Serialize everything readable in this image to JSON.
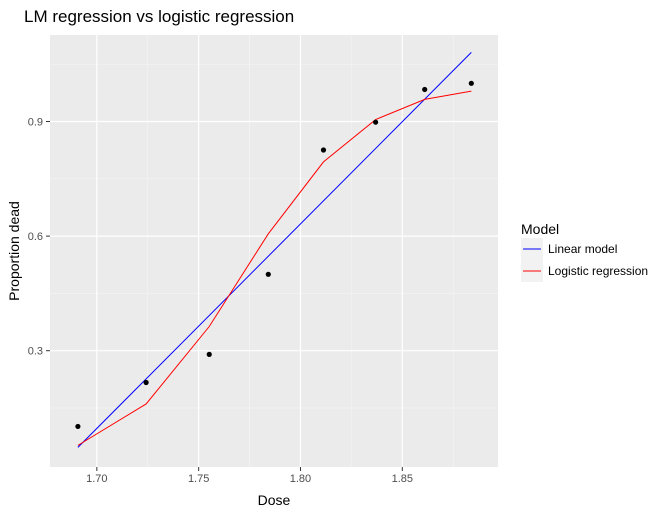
{
  "chart_data": {
    "type": "line",
    "title": "LM regression vs logistic regression",
    "xlabel": "Dose",
    "ylabel": "Proportion dead",
    "xlim": [
      1.677,
      1.897
    ],
    "ylim": [
      -0.0045,
      1.1265
    ],
    "x_ticks": [
      1.7,
      1.75,
      1.8,
      1.85
    ],
    "x_tick_labels": [
      "1.70",
      "1.75",
      "1.80",
      "1.85"
    ],
    "y_ticks": [
      0.3,
      0.6,
      0.9
    ],
    "y_tick_labels": [
      "0.3",
      "0.6",
      "0.9"
    ],
    "grid": true,
    "panel_background": "#ebebeb",
    "legend": {
      "title": "Model",
      "position": "right",
      "entries": [
        "Linear model",
        "Logistic regression"
      ]
    },
    "points": {
      "x": [
        1.6907,
        1.7242,
        1.7552,
        1.7842,
        1.8113,
        1.8369,
        1.861,
        1.8839
      ],
      "y": [
        0.1017,
        0.2167,
        0.2903,
        0.5,
        0.8254,
        0.8983,
        0.9839,
        1.0
      ],
      "color": "#000000"
    },
    "series": [
      {
        "name": "Linear model",
        "color": "#0000ff",
        "x": [
          1.6907,
          1.8839
        ],
        "y": [
          0.0468,
          1.081
        ]
      },
      {
        "name": "Logistic regression",
        "color": "#ff0000",
        "x": [
          1.6907,
          1.7242,
          1.7552,
          1.7842,
          1.8113,
          1.8369,
          1.861,
          1.8839
        ],
        "y": [
          0.0521,
          0.1605,
          0.3633,
          0.606,
          0.7943,
          0.9051,
          0.958,
          0.9795
        ]
      }
    ]
  }
}
